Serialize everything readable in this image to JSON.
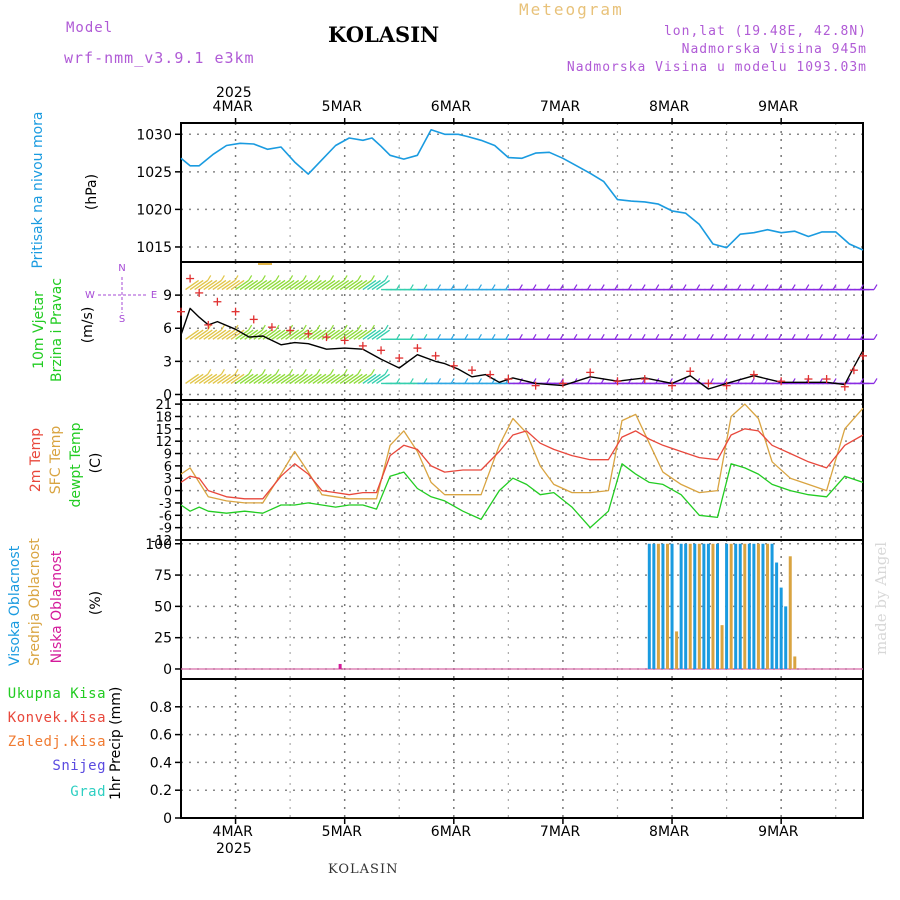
{
  "header": {
    "model_label": "Model",
    "model_name": "wrf-nmm_v3.9.1 e3km",
    "station": "KOLASIN",
    "product": "Meteogram",
    "lonlat": "lon,lat (19.48E, 42.8N)",
    "elevation": "Nadmorska Visina 945m",
    "model_elevation": "Nadmorska Visina u modelu 1093.03m"
  },
  "time_axis": {
    "year": "2025",
    "days": [
      "4MAR",
      "5MAR",
      "6MAR",
      "7MAR",
      "8MAR",
      "9MAR"
    ],
    "hours_per_day": 24,
    "start_hour_offset": -12,
    "end_hour_offset": 138
  },
  "footer": {
    "station": "KOLASIN",
    "credit": "made by Angel"
  },
  "colors": {
    "pressure": "#1a9be0",
    "temp2m": "#e8483c",
    "sfc": "#d9a441",
    "dewpt": "#22cc22",
    "high_cloud": "#1a9be0",
    "mid_cloud": "#d9a441",
    "low_cloud": "#d41a9a",
    "gust": "#e03030",
    "wind": "#000000"
  },
  "chart_data": [
    {
      "id": "pressure",
      "type": "line",
      "title": "Pritisak na nivou mora",
      "ylabel_line1": "Pritisak na nivou mora",
      "ylabel_unit": "(hPa)",
      "ylim": [
        1013,
        1031.5
      ],
      "yticks": [
        1015,
        1020,
        1025,
        1030
      ],
      "series": [
        {
          "name": "MSLP",
          "x": [
            -12,
            -10,
            -8,
            -5,
            -2,
            1,
            4,
            7,
            10,
            13,
            16,
            19,
            22,
            25,
            28,
            30,
            32,
            34,
            37,
            40,
            43,
            46,
            49,
            51,
            54,
            57,
            60,
            63,
            66,
            69,
            72,
            75,
            78,
            81,
            84,
            87,
            90,
            93,
            96,
            99,
            102,
            105,
            108,
            111,
            114,
            117,
            120,
            123,
            126,
            129,
            132,
            135,
            138
          ],
          "values": [
            1026.8,
            1025.8,
            1025.8,
            1027.3,
            1028.5,
            1028.8,
            1028.7,
            1028.0,
            1028.3,
            1026.3,
            1024.7,
            1026.6,
            1028.5,
            1029.5,
            1029.2,
            1029.5,
            1028.4,
            1027.2,
            1026.7,
            1027.2,
            1030.6,
            1030.0,
            1030.0,
            1029.7,
            1029.2,
            1028.5,
            1026.9,
            1026.8,
            1027.5,
            1027.6,
            1026.8,
            1025.8,
            1024.8,
            1023.7,
            1021.3,
            1021.1,
            1021.0,
            1020.7,
            1019.8,
            1019.5,
            1018.0,
            1015.4,
            1014.9,
            1016.7,
            1016.9,
            1017.3,
            1016.9,
            1017.1,
            1016.4,
            1017.0,
            1017.0,
            1015.4,
            1014.6
          ]
        }
      ]
    },
    {
      "id": "wind",
      "type": "line",
      "title": "10m Vjetar Brzina i Pravac",
      "ylabel_line1": "10m Vjetar",
      "ylabel_line2": "Brzina i Pravac",
      "ylabel_unit": "(m/s)",
      "direction_legend": [
        "N",
        "W",
        "E",
        "S"
      ],
      "ylim": [
        -0.5,
        12
      ],
      "yticks": [
        0,
        3,
        6,
        9
      ],
      "series": [
        {
          "name": "speed",
          "x": [
            -12,
            -10,
            -8,
            -6,
            -4,
            0,
            3,
            6,
            10,
            13,
            16,
            20,
            24,
            28,
            32,
            36,
            40,
            44,
            46,
            49,
            52,
            55,
            58,
            61,
            66,
            72,
            78,
            84,
            90,
            96,
            100,
            104,
            108,
            114,
            120,
            126,
            130,
            134,
            136,
            138
          ],
          "values": [
            5.4,
            7.8,
            7.0,
            6.3,
            6.6,
            5.9,
            5.2,
            5.3,
            4.5,
            4.7,
            4.6,
            4.1,
            4.2,
            4.1,
            3.2,
            2.4,
            3.6,
            3.0,
            2.8,
            2.3,
            1.6,
            1.8,
            1.1,
            1.5,
            1.0,
            0.8,
            1.6,
            1.2,
            1.5,
            1.0,
            1.7,
            0.5,
            1.0,
            1.7,
            1.1,
            1.1,
            1.1,
            0.9,
            2.5,
            4.0
          ]
        },
        {
          "name": "gust",
          "x": [
            -12,
            -10,
            -8,
            -6,
            -4,
            0,
            4,
            8,
            12,
            16,
            20,
            24,
            28,
            32,
            36,
            40,
            44,
            48,
            52,
            56,
            60,
            66,
            72,
            78,
            84,
            90,
            96,
            100,
            104,
            108,
            114,
            120,
            126,
            130,
            134,
            136,
            138
          ],
          "values": [
            7.5,
            10.5,
            9.2,
            6.3,
            8.4,
            7.5,
            6.8,
            6.1,
            5.8,
            5.5,
            5.2,
            4.9,
            4.4,
            4.0,
            3.3,
            4.2,
            3.5,
            2.6,
            2.2,
            1.8,
            1.4,
            0.8,
            1.0,
            2.0,
            1.2,
            1.4,
            0.8,
            2.1,
            1.0,
            0.8,
            1.8,
            1.2,
            1.4,
            1.4,
            0.7,
            2.2,
            3.5
          ]
        },
        {
          "name": "barb_rows",
          "values": [
            1,
            5,
            9.5
          ]
        }
      ]
    },
    {
      "id": "temperature",
      "type": "line",
      "title": "2m Temp / SFC Temp / dewpt Temp",
      "ylabel_parts": [
        "2m Temp",
        "SFC Temp",
        "dewpt Temp"
      ],
      "ylabel_unit": "(C)",
      "ylim": [
        -12,
        22
      ],
      "yticks": [
        -12,
        -9,
        -6,
        -3,
        0,
        3,
        6,
        9,
        12,
        15,
        18,
        21
      ],
      "series": [
        {
          "name": "2m Temp",
          "x": [
            -12,
            -10,
            -8,
            -6,
            -2,
            2,
            6,
            10,
            13,
            16,
            19,
            22,
            25,
            28,
            31,
            34,
            37,
            40,
            43,
            46,
            50,
            54,
            58,
            61,
            64,
            67,
            70,
            74,
            78,
            82,
            85,
            88,
            91,
            94,
            98,
            102,
            106,
            109,
            112,
            115,
            118,
            122,
            126,
            130,
            134,
            138
          ],
          "values": [
            2.0,
            3.5,
            3.0,
            0.0,
            -1.5,
            -2.0,
            -2.0,
            3.5,
            6.5,
            4.0,
            0.0,
            -0.5,
            -1.0,
            -0.5,
            -0.5,
            8.5,
            11.0,
            10.0,
            6.0,
            4.5,
            5.0,
            5.0,
            9.5,
            13.5,
            14.5,
            11.5,
            10.0,
            8.5,
            7.5,
            7.5,
            13.0,
            14.5,
            12.5,
            11.0,
            9.5,
            8.0,
            7.5,
            13.5,
            15.0,
            14.5,
            11.0,
            9.0,
            7.0,
            5.5,
            11.0,
            13.5
          ]
        },
        {
          "name": "SFC Temp",
          "x": [
            -12,
            -10,
            -8,
            -6,
            -2,
            2,
            6,
            10,
            13,
            16,
            19,
            22,
            25,
            28,
            31,
            34,
            37,
            40,
            43,
            46,
            50,
            54,
            58,
            61,
            64,
            67,
            70,
            74,
            78,
            82,
            85,
            88,
            91,
            94,
            98,
            102,
            106,
            109,
            112,
            115,
            118,
            122,
            126,
            130,
            134,
            138
          ],
          "values": [
            4.0,
            5.5,
            2.0,
            -1.5,
            -2.5,
            -3.0,
            -3.0,
            4.0,
            9.5,
            4.5,
            -1.0,
            -1.5,
            -2.0,
            -2.0,
            -2.0,
            11.0,
            14.5,
            9.5,
            2.0,
            -1.0,
            -1.0,
            -1.0,
            11.0,
            17.5,
            14.0,
            6.0,
            1.5,
            -0.5,
            -0.5,
            0.0,
            17.0,
            18.5,
            11.5,
            4.5,
            1.5,
            -0.5,
            0.0,
            18.0,
            21.0,
            17.5,
            7.0,
            3.0,
            1.5,
            0.0,
            15.0,
            20.0
          ]
        },
        {
          "name": "dewpt Temp",
          "x": [
            -12,
            -10,
            -8,
            -6,
            -2,
            2,
            6,
            10,
            13,
            16,
            19,
            22,
            25,
            28,
            31,
            34,
            37,
            40,
            43,
            46,
            50,
            54,
            58,
            61,
            64,
            67,
            70,
            74,
            78,
            82,
            85,
            88,
            91,
            94,
            98,
            102,
            106,
            109,
            112,
            115,
            118,
            122,
            126,
            130,
            134,
            138
          ],
          "values": [
            -3.5,
            -5.0,
            -4.0,
            -5.0,
            -5.5,
            -5.0,
            -5.5,
            -3.5,
            -3.5,
            -3.0,
            -3.5,
            -4.0,
            -3.5,
            -3.5,
            -4.5,
            3.5,
            4.5,
            0.5,
            -1.5,
            -2.5,
            -5.0,
            -7.0,
            0.0,
            3.0,
            1.5,
            -1.0,
            -0.5,
            -4.0,
            -9.0,
            -5.0,
            6.5,
            4.0,
            2.0,
            1.5,
            -1.0,
            -6.0,
            -6.5,
            6.5,
            5.5,
            4.0,
            1.5,
            0.0,
            -1.0,
            -1.5,
            3.5,
            2.0
          ]
        }
      ]
    },
    {
      "id": "cloud",
      "type": "bar",
      "title": "Visoka / Srednja / Niska Oblacnost",
      "ylabel_parts": [
        "Visoka Oblacnost",
        "Srednja Oblacnost",
        "Niska Oblacnost"
      ],
      "ylabel_unit": "(%)",
      "ylim": [
        -8,
        103
      ],
      "yticks": [
        0,
        25,
        50,
        75,
        100
      ],
      "series": [
        {
          "name": "Visoka Oblacnost",
          "x": [
            91,
            92,
            94,
            96,
            98,
            99,
            101,
            103,
            104,
            106,
            108,
            110,
            111,
            113,
            114,
            116,
            118,
            119,
            120,
            121
          ],
          "values": [
            100,
            100,
            100,
            100,
            100,
            100,
            100,
            100,
            100,
            100,
            100,
            100,
            100,
            100,
            100,
            100,
            100,
            85,
            65,
            50
          ]
        },
        {
          "name": "Srednja Oblacnost",
          "x": [
            93,
            95,
            97,
            100,
            102,
            105,
            107,
            109,
            112,
            115,
            117,
            122,
            123
          ],
          "values": [
            100,
            100,
            30,
            100,
            100,
            100,
            35,
            100,
            100,
            100,
            100,
            90,
            10
          ]
        },
        {
          "name": "Niska Oblacnost",
          "x": [
            23
          ],
          "values": [
            4
          ]
        }
      ]
    },
    {
      "id": "precip",
      "type": "line",
      "title": "1hr Precip (mm)",
      "ylabel_unit": "1hr Precip (mm)",
      "ylim": [
        0,
        1
      ],
      "yticks": [
        0,
        0.2,
        0.4,
        0.6,
        0.8
      ],
      "legend": [
        "Ukupna Kisa",
        "Konvek.Kisa",
        "Zaledj.Kisa",
        "Snijeg",
        "Grad"
      ],
      "series": [
        {
          "name": "Ukupna Kisa",
          "values": []
        }
      ]
    }
  ]
}
